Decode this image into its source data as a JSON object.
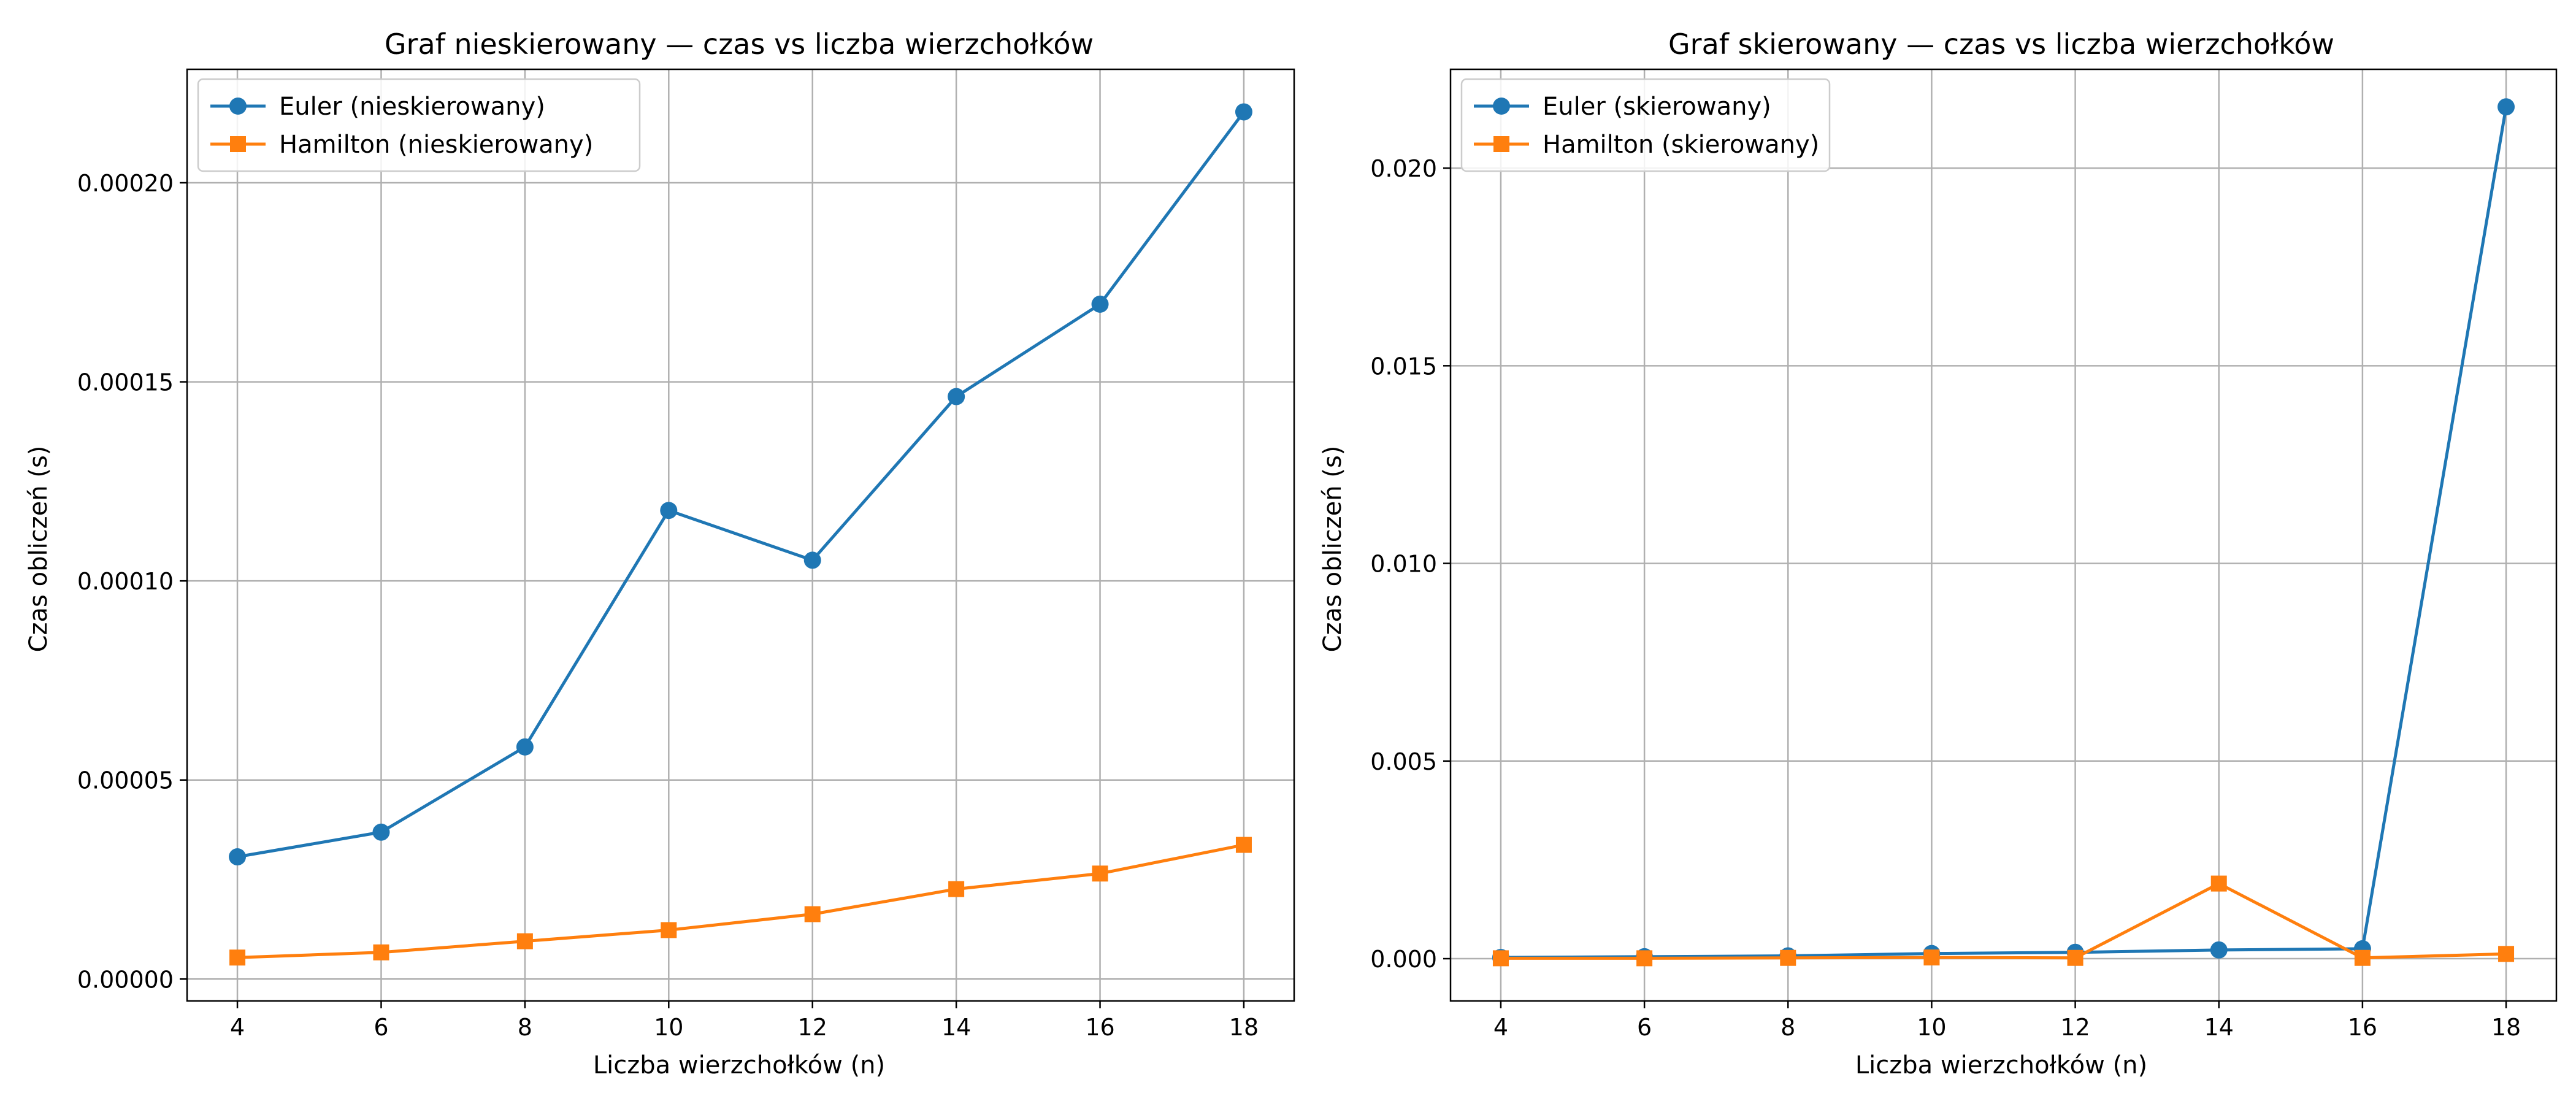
{
  "colors": {
    "series_1": "#1f77b4",
    "series_2": "#ff7f0e",
    "grid": "#b0b0b0",
    "axis": "#000000",
    "background": "#ffffff"
  },
  "chart_data": [
    {
      "type": "line",
      "title": "Graf nieskierowany — czas vs liczba wierzchołków",
      "xlabel": "Liczba wierzchołków (n)",
      "ylabel": "Czas obliczeń (s)",
      "x": [
        4,
        6,
        8,
        10,
        12,
        14,
        16,
        18
      ],
      "xlim": [
        3.3,
        18.7
      ],
      "ylim": [
        -5.5e-06,
        0.0002285
      ],
      "xticks": [
        4,
        6,
        8,
        10,
        12,
        14,
        16,
        18
      ],
      "xtick_labels": [
        "4",
        "6",
        "8",
        "10",
        "12",
        "14",
        "16",
        "18"
      ],
      "yticks": [
        0,
        5e-05,
        0.0001,
        0.00015,
        0.0002
      ],
      "ytick_labels": [
        "0.00000",
        "0.00005",
        "0.00010",
        "0.00015",
        "0.00020"
      ],
      "grid": true,
      "legend_position": "upper left",
      "series": [
        {
          "name": "Euler (nieskierowany)",
          "marker": "circle",
          "color": "#1f77b4",
          "values": [
            3.07e-05,
            3.69e-05,
            5.83e-05,
            0.0001177,
            0.0001052,
            0.0001463,
            0.0001695,
            0.0002178
          ]
        },
        {
          "name": "Hamilton (nieskierowany)",
          "marker": "square",
          "color": "#ff7f0e",
          "values": [
            5.4e-06,
            6.7e-06,
            9.5e-06,
            1.23e-05,
            1.63e-05,
            2.26e-05,
            2.65e-05,
            3.37e-05
          ]
        }
      ]
    },
    {
      "type": "line",
      "title": "Graf skierowany — czas vs liczba wierzchołków",
      "xlabel": "Liczba wierzchołków (n)",
      "ylabel": "Czas obliczeń (s)",
      "x": [
        4,
        6,
        8,
        10,
        12,
        14,
        16,
        18
      ],
      "xlim": [
        3.3,
        18.7
      ],
      "ylim": [
        -0.00107,
        0.0225
      ],
      "xticks": [
        4,
        6,
        8,
        10,
        12,
        14,
        16,
        18
      ],
      "xtick_labels": [
        "4",
        "6",
        "8",
        "10",
        "12",
        "14",
        "16",
        "18"
      ],
      "yticks": [
        0,
        0.005,
        0.01,
        0.015,
        0.02
      ],
      "ytick_labels": [
        "0.000",
        "0.005",
        "0.010",
        "0.015",
        "0.020"
      ],
      "grid": true,
      "legend_position": "upper left",
      "series": [
        {
          "name": "Euler (skierowany)",
          "marker": "circle",
          "color": "#1f77b4",
          "values": [
            3e-05,
            5e-05,
            7e-05,
            0.00013,
            0.00016,
            0.00022,
            0.00025,
            0.02155
          ]
        },
        {
          "name": "Hamilton (skierowany)",
          "marker": "square",
          "color": "#ff7f0e",
          "values": [
            1e-05,
            1e-05,
            2e-05,
            3e-05,
            2e-05,
            0.0019,
            2e-05,
            0.00012
          ]
        }
      ]
    }
  ]
}
